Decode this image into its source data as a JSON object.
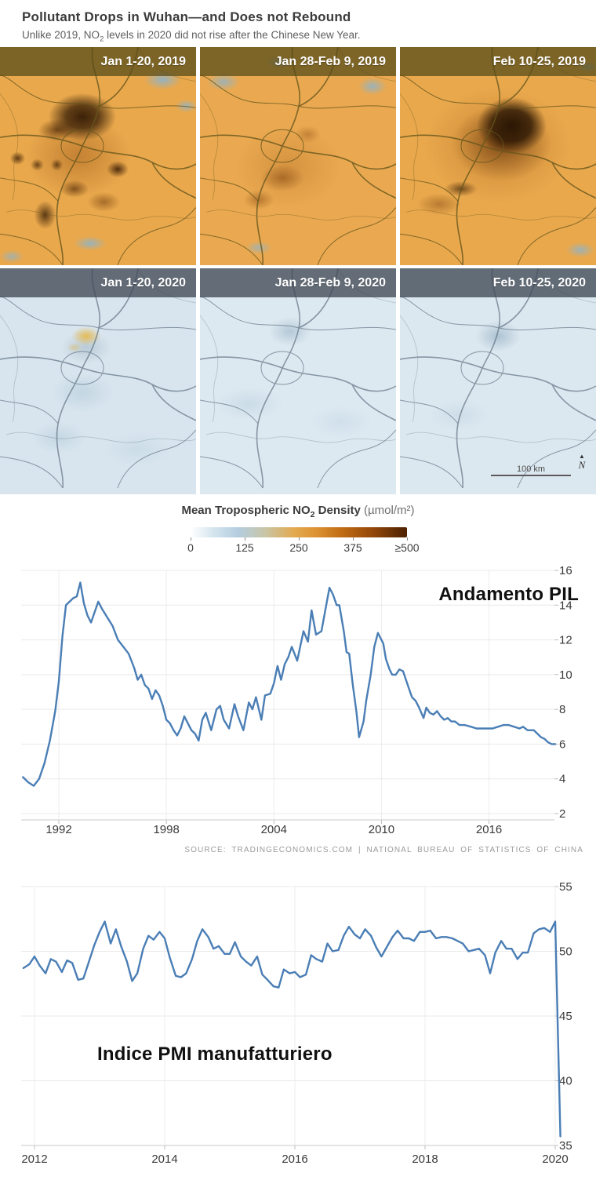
{
  "header": {
    "title": "Pollutant Drops in Wuhan—and Does not Rebound",
    "subtitle_pre": "Unlike 2019, NO",
    "subtitle_sub": "2",
    "subtitle_post": " levels in 2020 did not rise after the Chinese New Year."
  },
  "maps": {
    "panels": [
      {
        "label": "Jan 1-20, 2019"
      },
      {
        "label": "Jan 28-Feb 9, 2019"
      },
      {
        "label": "Feb 10-25, 2019"
      },
      {
        "label": "Jan 1-20, 2020"
      },
      {
        "label": "Jan 28-Feb 9, 2020"
      },
      {
        "label": "Feb 10-25, 2020"
      }
    ],
    "scale_bar_label": "100 km",
    "compass_label": "N"
  },
  "legend": {
    "title_pre": "Mean Tropospheric NO",
    "title_sub": "2",
    "title_post": " Density",
    "title_unit": " (µmol/m²)",
    "tick_labels": [
      "0",
      "125",
      "250",
      "375",
      "≥500"
    ],
    "gradient_stops": [
      "#ffffff 0%",
      "#d6e6ef 10%",
      "#b3cde0 22%",
      "#c8c6a8 34%",
      "#e3a94f 48%",
      "#dd9232 58%",
      "#c06c14 70%",
      "#94480a 84%",
      "#5c2a04 96%",
      "#502303 100%"
    ]
  },
  "chart_data": [
    {
      "id": "gdp",
      "type": "line",
      "title": "Andamento PIL",
      "source": "SOURCE: TRADINGECONOMICS.COM | NATIONAL BUREAU OF STATISTICS OF CHINA",
      "line_color": "#4a7eb5",
      "grid": true,
      "legend_position": "none",
      "x_ticks": [
        1992,
        1998,
        2004,
        2010,
        2016
      ],
      "y_ticks": [
        2,
        4,
        6,
        8,
        10,
        12,
        14,
        16
      ],
      "xlim": [
        1989.9,
        2019.9
      ],
      "ylim": [
        2,
        16
      ],
      "points": [
        [
          1990,
          4.1
        ],
        [
          1990.3,
          3.8
        ],
        [
          1990.6,
          3.6
        ],
        [
          1990.9,
          4
        ],
        [
          1991.2,
          4.9
        ],
        [
          1991.5,
          6.2
        ],
        [
          1991.8,
          7.9
        ],
        [
          1992,
          9.6
        ],
        [
          1992.2,
          12.2
        ],
        [
          1992.4,
          14
        ],
        [
          1992.6,
          14.2
        ],
        [
          1992.8,
          14.4
        ],
        [
          1993,
          14.5
        ],
        [
          1993.2,
          15.3
        ],
        [
          1993.4,
          14.1
        ],
        [
          1993.6,
          13.4
        ],
        [
          1993.8,
          13
        ],
        [
          1994,
          13.6
        ],
        [
          1994.2,
          14.2
        ],
        [
          1994.4,
          13.8
        ],
        [
          1994.7,
          13.3
        ],
        [
          1995,
          12.8
        ],
        [
          1995.3,
          12
        ],
        [
          1995.6,
          11.6
        ],
        [
          1995.9,
          11.2
        ],
        [
          1996.2,
          10.4
        ],
        [
          1996.4,
          9.7
        ],
        [
          1996.6,
          10
        ],
        [
          1996.8,
          9.4
        ],
        [
          1997,
          9.2
        ],
        [
          1997.2,
          8.6
        ],
        [
          1997.4,
          9.1
        ],
        [
          1997.6,
          8.8
        ],
        [
          1997.8,
          8.2
        ],
        [
          1998,
          7.4
        ],
        [
          1998.2,
          7.2
        ],
        [
          1998.4,
          6.8
        ],
        [
          1998.6,
          6.5
        ],
        [
          1998.8,
          6.9
        ],
        [
          1999,
          7.6
        ],
        [
          1999.2,
          7.2
        ],
        [
          1999.4,
          6.8
        ],
        [
          1999.6,
          6.6
        ],
        [
          1999.8,
          6.2
        ],
        [
          2000,
          7.4
        ],
        [
          2000.2,
          7.8
        ],
        [
          2000.5,
          6.8
        ],
        [
          2000.8,
          8
        ],
        [
          2001,
          8.2
        ],
        [
          2001.2,
          7.4
        ],
        [
          2001.5,
          6.9
        ],
        [
          2001.8,
          8.3
        ],
        [
          2002,
          7.6
        ],
        [
          2002.3,
          6.8
        ],
        [
          2002.6,
          8.4
        ],
        [
          2002.8,
          8
        ],
        [
          2003,
          8.7
        ],
        [
          2003.3,
          7.4
        ],
        [
          2003.5,
          8.8
        ],
        [
          2003.8,
          8.9
        ],
        [
          2004,
          9.5
        ],
        [
          2004.2,
          10.5
        ],
        [
          2004.4,
          9.7
        ],
        [
          2004.6,
          10.6
        ],
        [
          2004.8,
          11
        ],
        [
          2005,
          11.6
        ],
        [
          2005.3,
          10.8
        ],
        [
          2005.65,
          12.5
        ],
        [
          2005.9,
          11.9
        ],
        [
          2006.1,
          13.7
        ],
        [
          2006.35,
          12.3
        ],
        [
          2006.65,
          12.5
        ],
        [
          2006.9,
          13.9
        ],
        [
          2007.1,
          15
        ],
        [
          2007.3,
          14.6
        ],
        [
          2007.5,
          14
        ],
        [
          2007.65,
          14
        ],
        [
          2007.9,
          12.5
        ],
        [
          2008.05,
          11.3
        ],
        [
          2008.2,
          11.2
        ],
        [
          2008.4,
          9.4
        ],
        [
          2008.6,
          7.9
        ],
        [
          2008.75,
          6.4
        ],
        [
          2009,
          7.3
        ],
        [
          2009.15,
          8.5
        ],
        [
          2009.4,
          10
        ],
        [
          2009.6,
          11.6
        ],
        [
          2009.8,
          12.4
        ],
        [
          2010.1,
          11.8
        ],
        [
          2010.25,
          10.9
        ],
        [
          2010.45,
          10.3
        ],
        [
          2010.6,
          10
        ],
        [
          2010.8,
          10
        ],
        [
          2011,
          10.3
        ],
        [
          2011.2,
          10.2
        ],
        [
          2011.5,
          9.3
        ],
        [
          2011.7,
          8.7
        ],
        [
          2011.9,
          8.5
        ],
        [
          2012.1,
          8.1
        ],
        [
          2012.35,
          7.5
        ],
        [
          2012.5,
          8.1
        ],
        [
          2012.7,
          7.8
        ],
        [
          2012.9,
          7.7
        ],
        [
          2013.1,
          7.9
        ],
        [
          2013.3,
          7.6
        ],
        [
          2013.5,
          7.4
        ],
        [
          2013.7,
          7.5
        ],
        [
          2013.9,
          7.3
        ],
        [
          2014.1,
          7.3
        ],
        [
          2014.35,
          7.1
        ],
        [
          2014.65,
          7.1
        ],
        [
          2015,
          7
        ],
        [
          2015.3,
          6.9
        ],
        [
          2015.55,
          6.9
        ],
        [
          2015.9,
          6.9
        ],
        [
          2016.2,
          6.9
        ],
        [
          2016.5,
          7
        ],
        [
          2016.8,
          7.1
        ],
        [
          2017.1,
          7.1
        ],
        [
          2017.4,
          7
        ],
        [
          2017.7,
          6.9
        ],
        [
          2017.9,
          7
        ],
        [
          2018.15,
          6.8
        ],
        [
          2018.5,
          6.8
        ],
        [
          2018.7,
          6.6
        ],
        [
          2018.9,
          6.4
        ],
        [
          2019.1,
          6.3
        ],
        [
          2019.3,
          6.1
        ],
        [
          2019.5,
          6
        ],
        [
          2019.7,
          6
        ]
      ]
    },
    {
      "id": "pmi",
      "type": "line",
      "title": "Indice PMI manufatturiero",
      "line_color": "#4a7eb5",
      "grid": true,
      "legend_position": "none",
      "x_ticks": [
        2012,
        2014,
        2016,
        2018,
        2020
      ],
      "y_ticks": [
        35,
        40,
        45,
        50,
        55
      ],
      "xlim": [
        2011.75,
        2020.35
      ],
      "ylim": [
        35,
        55
      ],
      "points": [
        [
          2011.83,
          48.7
        ],
        [
          2011.92,
          49
        ],
        [
          2012,
          49.6
        ],
        [
          2012.08,
          48.9
        ],
        [
          2012.17,
          48.3
        ],
        [
          2012.25,
          49.4
        ],
        [
          2012.33,
          49.2
        ],
        [
          2012.42,
          48.4
        ],
        [
          2012.5,
          49.3
        ],
        [
          2012.58,
          49.1
        ],
        [
          2012.67,
          47.8
        ],
        [
          2012.75,
          47.9
        ],
        [
          2012.83,
          49.1
        ],
        [
          2012.92,
          50.5
        ],
        [
          2013,
          51.5
        ],
        [
          2013.08,
          52.3
        ],
        [
          2013.17,
          50.6
        ],
        [
          2013.25,
          51.7
        ],
        [
          2013.33,
          50.4
        ],
        [
          2013.42,
          49.2
        ],
        [
          2013.5,
          47.7
        ],
        [
          2013.58,
          48.3
        ],
        [
          2013.67,
          50.2
        ],
        [
          2013.75,
          51.2
        ],
        [
          2013.83,
          50.9
        ],
        [
          2013.92,
          51.5
        ],
        [
          2014,
          51
        ],
        [
          2014.08,
          49.5
        ],
        [
          2014.17,
          48.1
        ],
        [
          2014.25,
          48
        ],
        [
          2014.33,
          48.3
        ],
        [
          2014.42,
          49.4
        ],
        [
          2014.5,
          50.8
        ],
        [
          2014.58,
          51.7
        ],
        [
          2014.67,
          51.1
        ],
        [
          2014.75,
          50.2
        ],
        [
          2014.83,
          50.4
        ],
        [
          2014.92,
          49.8
        ],
        [
          2015,
          49.8
        ],
        [
          2015.08,
          50.7
        ],
        [
          2015.17,
          49.6
        ],
        [
          2015.25,
          49.2
        ],
        [
          2015.33,
          48.9
        ],
        [
          2015.42,
          49.6
        ],
        [
          2015.5,
          48.2
        ],
        [
          2015.58,
          47.8
        ],
        [
          2015.67,
          47.3
        ],
        [
          2015.75,
          47.2
        ],
        [
          2015.83,
          48.6
        ],
        [
          2015.92,
          48.3
        ],
        [
          2016,
          48.4
        ],
        [
          2016.08,
          48
        ],
        [
          2016.17,
          48.2
        ],
        [
          2016.25,
          49.7
        ],
        [
          2016.33,
          49.4
        ],
        [
          2016.42,
          49.2
        ],
        [
          2016.5,
          50.6
        ],
        [
          2016.58,
          50
        ],
        [
          2016.67,
          50.1
        ],
        [
          2016.75,
          51.2
        ],
        [
          2016.83,
          51.9
        ],
        [
          2016.92,
          51.3
        ],
        [
          2017,
          51
        ],
        [
          2017.08,
          51.7
        ],
        [
          2017.17,
          51.2
        ],
        [
          2017.25,
          50.3
        ],
        [
          2017.33,
          49.6
        ],
        [
          2017.42,
          50.4
        ],
        [
          2017.5,
          51.1
        ],
        [
          2017.58,
          51.6
        ],
        [
          2017.67,
          51
        ],
        [
          2017.75,
          51
        ],
        [
          2017.83,
          50.8
        ],
        [
          2017.92,
          51.5
        ],
        [
          2018,
          51.5
        ],
        [
          2018.08,
          51.6
        ],
        [
          2018.17,
          51
        ],
        [
          2018.25,
          51.1
        ],
        [
          2018.33,
          51.1
        ],
        [
          2018.42,
          51
        ],
        [
          2018.5,
          50.8
        ],
        [
          2018.58,
          50.6
        ],
        [
          2018.67,
          50
        ],
        [
          2018.75,
          50.1
        ],
        [
          2018.83,
          50.2
        ],
        [
          2018.92,
          49.7
        ],
        [
          2019,
          48.3
        ],
        [
          2019.08,
          49.9
        ],
        [
          2019.17,
          50.8
        ],
        [
          2019.25,
          50.2
        ],
        [
          2019.33,
          50.2
        ],
        [
          2019.42,
          49.4
        ],
        [
          2019.5,
          49.9
        ],
        [
          2019.58,
          49.9
        ],
        [
          2019.67,
          51.4
        ],
        [
          2019.75,
          51.7
        ],
        [
          2019.83,
          51.8
        ],
        [
          2019.92,
          51.5
        ],
        [
          2020,
          52.3
        ],
        [
          2020.08,
          35.7
        ]
      ]
    }
  ]
}
